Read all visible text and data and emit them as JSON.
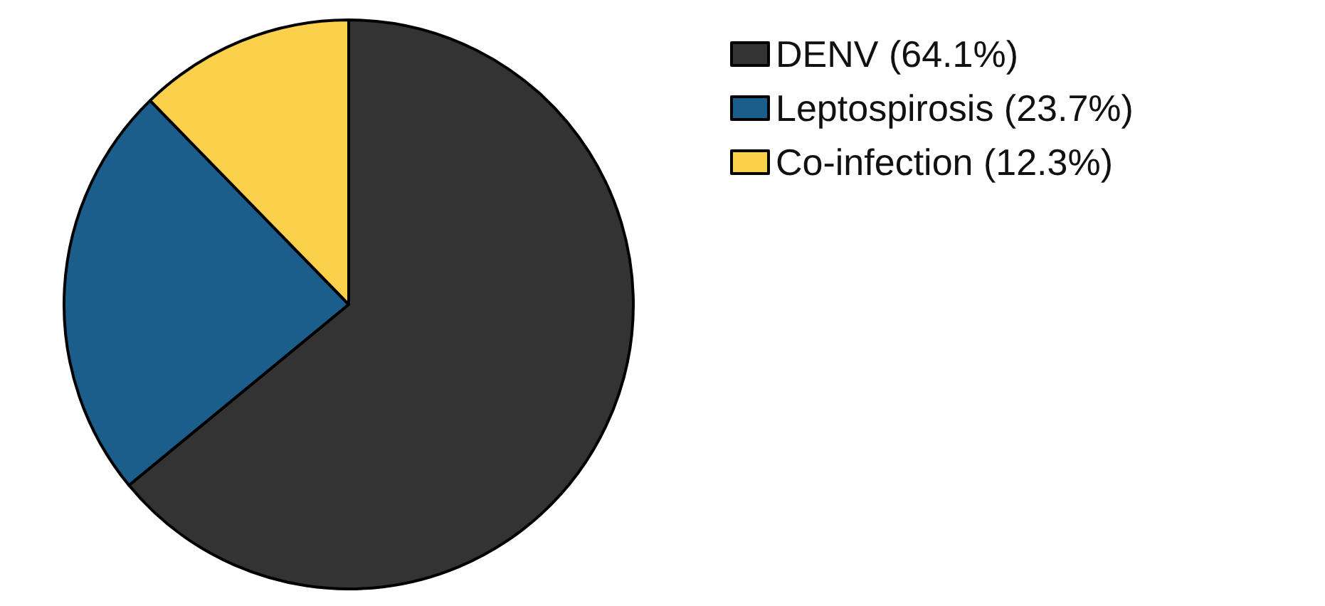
{
  "chart_data": {
    "type": "pie",
    "categories": [
      "DENV (64.1%)",
      "Leptospirosis (23.7%)",
      "Co-infection (12.3%)"
    ],
    "values": [
      64.1,
      23.7,
      12.3
    ],
    "colors": [
      "#333333",
      "#1b5e8c",
      "#fbd14b"
    ],
    "legend": "top right"
  }
}
